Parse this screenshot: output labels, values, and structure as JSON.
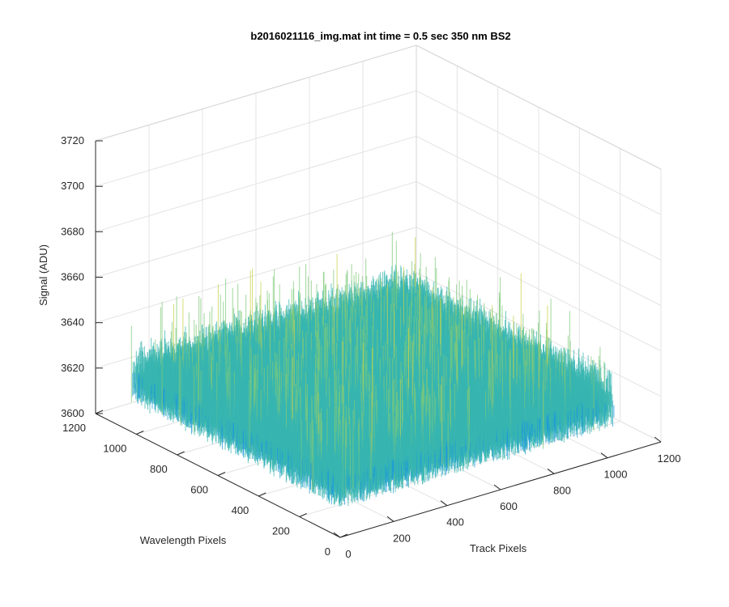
{
  "chart_data": {
    "type": "surface",
    "title": "b2016021116_img.mat int time = 0.5 sec  350 nm BS2",
    "xlabel": "Track Pixels",
    "ylabel": "Wavelength Pixels",
    "zlabel": "Signal (ADU)",
    "xlim": [
      0,
      1200
    ],
    "ylim": [
      0,
      1200
    ],
    "zlim": [
      3600,
      3720
    ],
    "xticks": [
      "0",
      "200",
      "400",
      "600",
      "800",
      "1000",
      "1200"
    ],
    "yticks": [
      "0",
      "200",
      "400",
      "600",
      "800",
      "1000",
      "1200"
    ],
    "zticks": [
      "3600",
      "3620",
      "3640",
      "3660",
      "3680",
      "3700",
      "3720"
    ],
    "grid": true,
    "surface": {
      "x_range": [
        0,
        1024
      ],
      "y_range": [
        0,
        1024
      ],
      "mean_signal": 3630,
      "signal_range": [
        3605,
        3695
      ],
      "colormap": [
        "#0072bd",
        "#1d9bd8",
        "#38b6b0",
        "#7fc97a",
        "#c8d24a"
      ]
    }
  }
}
